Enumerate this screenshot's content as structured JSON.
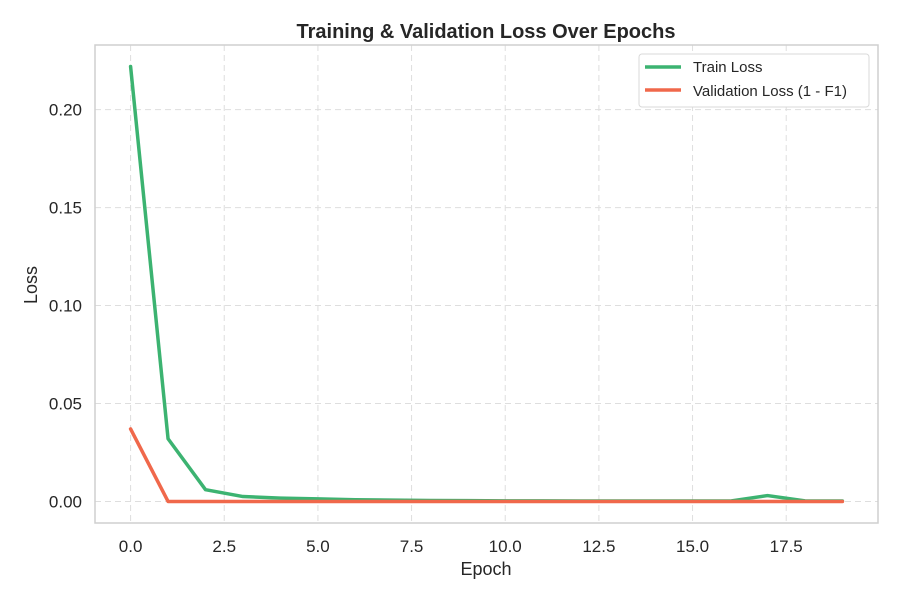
{
  "chart_data": {
    "type": "line",
    "title": "Training & Validation Loss Over Epochs",
    "xlabel": "Epoch",
    "ylabel": "Loss",
    "xlim": [
      -0.95,
      19.95
    ],
    "ylim": [
      -0.011,
      0.233
    ],
    "x_ticks": [
      0.0,
      2.5,
      5.0,
      7.5,
      10.0,
      12.5,
      15.0,
      17.5
    ],
    "x_tick_labels": [
      "0.0",
      "2.5",
      "5.0",
      "7.5",
      "10.0",
      "12.5",
      "15.0",
      "17.5"
    ],
    "y_ticks": [
      0.0,
      0.05,
      0.1,
      0.15,
      0.2
    ],
    "y_tick_labels": [
      "0.00",
      "0.05",
      "0.10",
      "0.15",
      "0.20"
    ],
    "grid": true,
    "legend_position": "top-right",
    "x": [
      0,
      1,
      2,
      3,
      4,
      5,
      6,
      7,
      8,
      9,
      10,
      11,
      12,
      13,
      14,
      15,
      16,
      17,
      18,
      19
    ],
    "series": [
      {
        "name": "Train Loss",
        "color": "#3cb371",
        "values": [
          0.222,
          0.032,
          0.006,
          0.0025,
          0.0017,
          0.0013,
          0.0009,
          0.0007,
          0.0005,
          0.0004,
          0.0003,
          0.0003,
          0.0002,
          0.0002,
          0.0002,
          0.0002,
          0.0002,
          0.003,
          0.0003,
          0.0002
        ]
      },
      {
        "name": "Validation Loss (1 - F1)",
        "color": "#f0684b",
        "values": [
          0.037,
          0.0,
          0.0,
          0.0,
          0.0,
          0.0,
          0.0,
          0.0,
          0.0,
          0.0,
          0.0,
          0.0,
          0.0,
          0.0,
          0.0,
          0.0,
          0.0,
          0.0,
          0.0,
          0.0
        ]
      }
    ]
  }
}
